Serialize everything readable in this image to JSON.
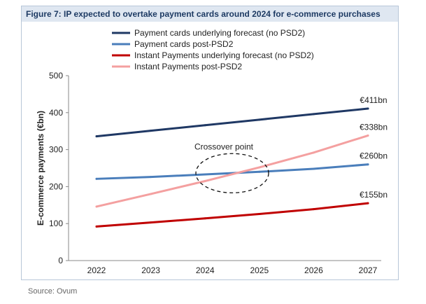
{
  "figure_title": "Figure 7: IP expected to overtake payment cards around 2024 for e-commerce purchases",
  "source": "Source: Ovum",
  "chart_data": {
    "type": "line",
    "title": "Figure 7: IP expected to overtake payment cards around 2024 for e-commerce purchases",
    "xlabel": "",
    "ylabel": "E-commerce payments (€bn)",
    "x": [
      "2022",
      "2023",
      "2024",
      "2025",
      "2026",
      "2027"
    ],
    "ylim": [
      0,
      500
    ],
    "yticks": [
      "0",
      "100",
      "200",
      "300",
      "400",
      "500"
    ],
    "grid": false,
    "legend_position": "top",
    "series": [
      {
        "name": "Payment cards underlying forecast (no PSD2)",
        "color": "#1f3864",
        "values": [
          336,
          351,
          366,
          381,
          396,
          411
        ],
        "end_label": "€411bn"
      },
      {
        "name": "Payment cards post-PSD2",
        "color": "#4a7ebb",
        "values": [
          221,
          226,
          233,
          240,
          248,
          260
        ],
        "end_label": "€260bn"
      },
      {
        "name": "Instant Payments underlying forecast (no PSD2)",
        "color": "#c00000",
        "values": [
          92,
          103,
          114,
          126,
          139,
          155
        ],
        "end_label": "€155bn"
      },
      {
        "name": "Instant Payments post-PSD2",
        "color": "#f4a0a0",
        "values": [
          146,
          180,
          215,
          252,
          292,
          338
        ],
        "end_label": "€338bn"
      }
    ],
    "annotations": [
      {
        "text": "Crossover point",
        "x": "2024.5",
        "y": 240
      }
    ]
  }
}
